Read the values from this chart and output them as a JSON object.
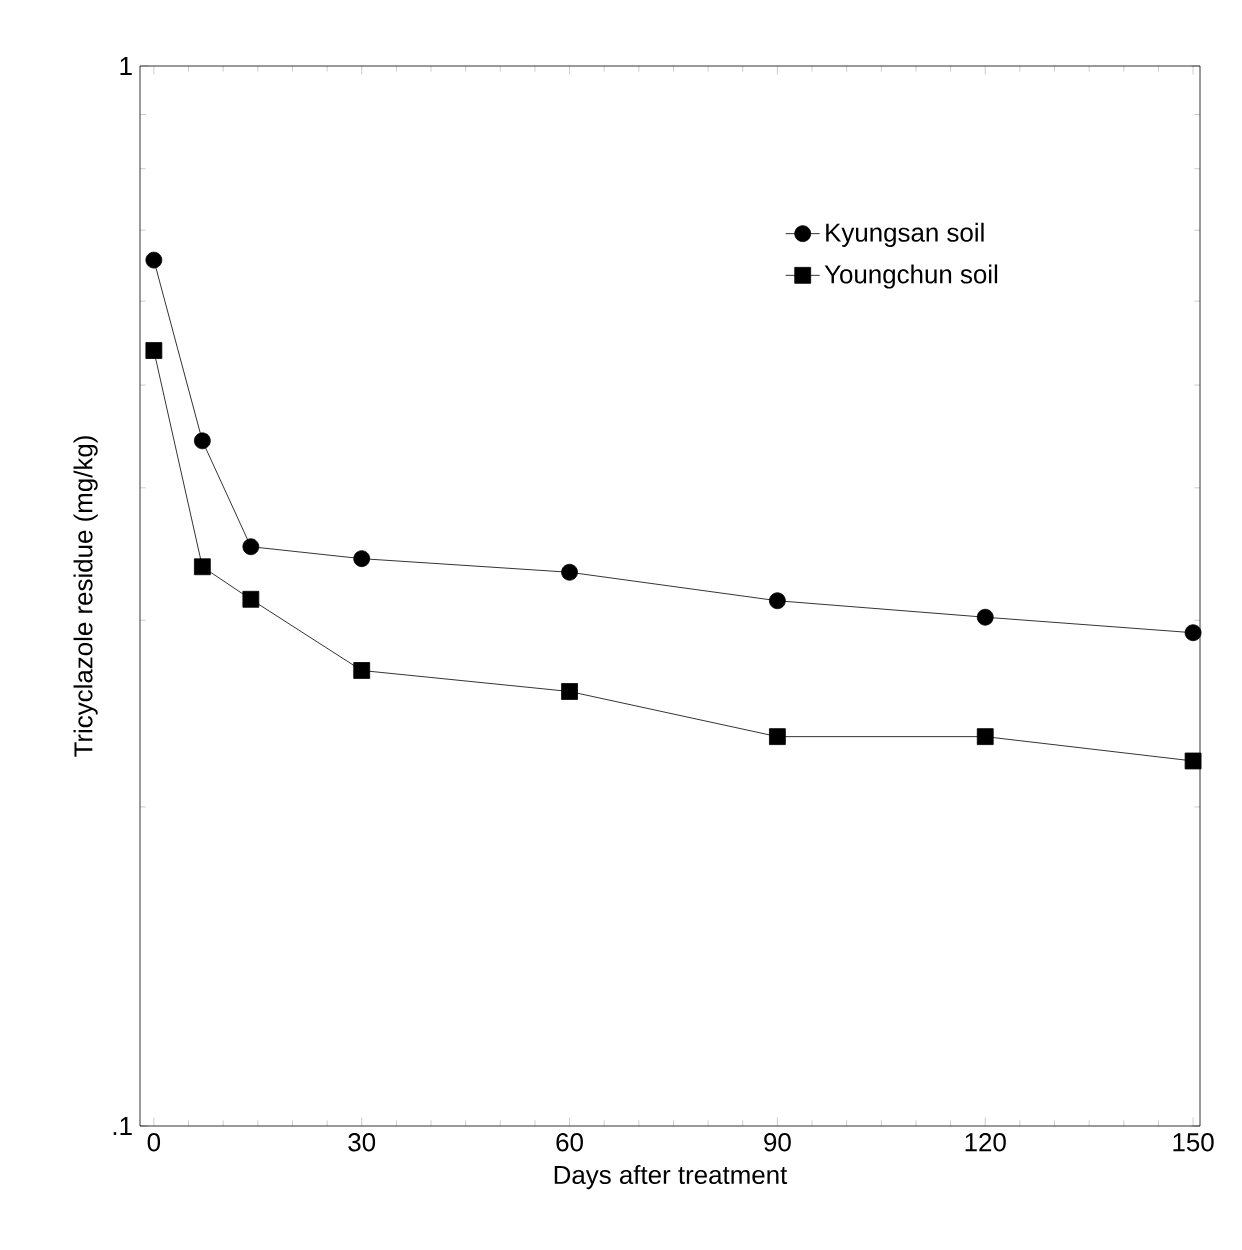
{
  "chart_data": {
    "type": "line",
    "xlabel": "Days after treatment",
    "ylabel": "Tricyclazole residue (mg/kg)",
    "log": "y",
    "xlim": [
      -2,
      151
    ],
    "ylim": [
      0.1,
      1
    ],
    "xticks": [
      0,
      30,
      60,
      90,
      120,
      150
    ],
    "yticks": [
      {
        "value": 0.1,
        "label": ".1"
      },
      {
        "value": 1,
        "label": "1"
      }
    ],
    "legend": "top right",
    "series": [
      {
        "name": "Kyungsan soil",
        "color": "#000000",
        "marker": "circle",
        "x": [
          0,
          7,
          14,
          30,
          60,
          90,
          120,
          150
        ],
        "values": [
          0.656,
          0.443,
          0.352,
          0.343,
          0.333,
          0.313,
          0.302,
          0.292
        ]
      },
      {
        "name": "Youngchun soil",
        "color": "#000000",
        "marker": "square",
        "x": [
          0,
          7,
          14,
          30,
          60,
          90,
          120,
          150
        ],
        "values": [
          0.539,
          0.337,
          0.314,
          0.269,
          0.257,
          0.233,
          0.233,
          0.221
        ]
      }
    ]
  }
}
